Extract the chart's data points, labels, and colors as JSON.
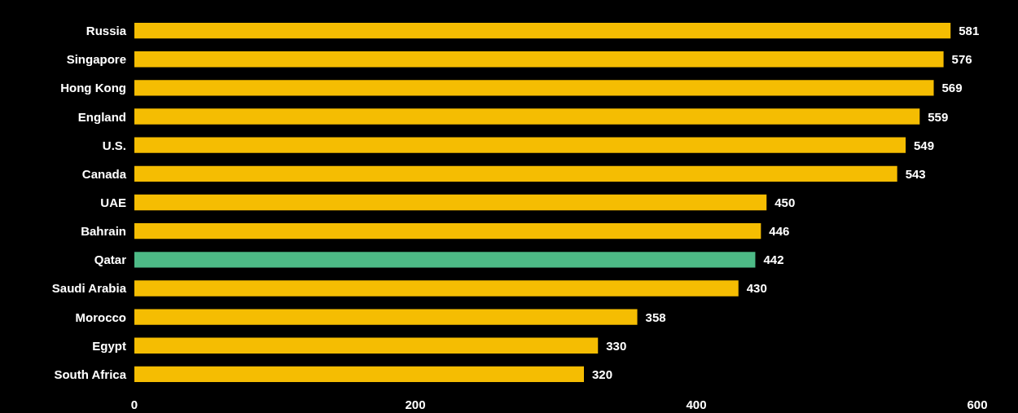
{
  "chart_data": {
    "type": "bar",
    "orientation": "horizontal",
    "categories": [
      "Russia",
      "Singapore",
      "Hong Kong",
      "England",
      "U.S.",
      "Canada",
      "UAE",
      "Bahrain",
      "Qatar",
      "Saudi Arabia",
      "Morocco",
      "Egypt",
      "South Africa"
    ],
    "values": [
      581,
      576,
      569,
      559,
      549,
      543,
      450,
      446,
      442,
      430,
      358,
      330,
      320
    ],
    "colors": [
      "#f5bd02",
      "#f5bd02",
      "#f5bd02",
      "#f5bd02",
      "#f5bd02",
      "#f5bd02",
      "#f5bd02",
      "#f5bd02",
      "#4dba86",
      "#f5bd02",
      "#f5bd02",
      "#f5bd02",
      "#f5bd02"
    ],
    "xlim": [
      0,
      600
    ],
    "xticks": [
      0,
      200,
      400,
      600
    ],
    "data_labels": true
  }
}
